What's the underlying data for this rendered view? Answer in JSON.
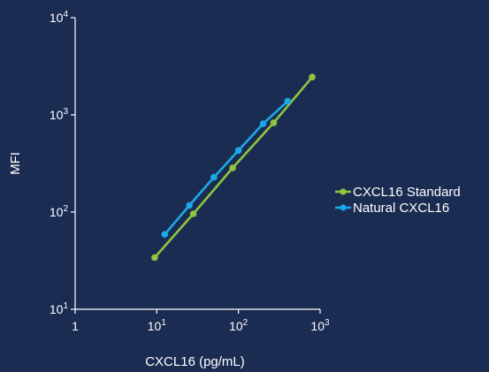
{
  "chart_data": {
    "type": "line",
    "title": "",
    "xlabel": "CXCL16 (pg/mL)",
    "ylabel": "MFI",
    "xscale": "log",
    "yscale": "log",
    "xlim": [
      1,
      1000
    ],
    "ylim": [
      10,
      10000
    ],
    "x_ticks": [
      {
        "base": "1",
        "exp": ""
      },
      {
        "base": "10",
        "exp": "1"
      },
      {
        "base": "10",
        "exp": "2"
      },
      {
        "base": "10",
        "exp": "3"
      }
    ],
    "y_ticks": [
      {
        "base": "10",
        "exp": "1"
      },
      {
        "base": "10",
        "exp": "2"
      },
      {
        "base": "10",
        "exp": "3"
      },
      {
        "base": "10",
        "exp": "4"
      }
    ],
    "grid": false,
    "legend_position": "right",
    "series": [
      {
        "name": "CXCL16 Standard",
        "color": "#8dc63f",
        "x": [
          9.4,
          28,
          85,
          270,
          800
        ],
        "y": [
          34,
          96,
          285,
          830,
          2450
        ]
      },
      {
        "name": "Natural CXCL16",
        "color": "#1aa9e8",
        "x": [
          12.5,
          25,
          50,
          100,
          200,
          400
        ],
        "y": [
          59,
          117,
          228,
          430,
          810,
          1380
        ]
      }
    ]
  }
}
